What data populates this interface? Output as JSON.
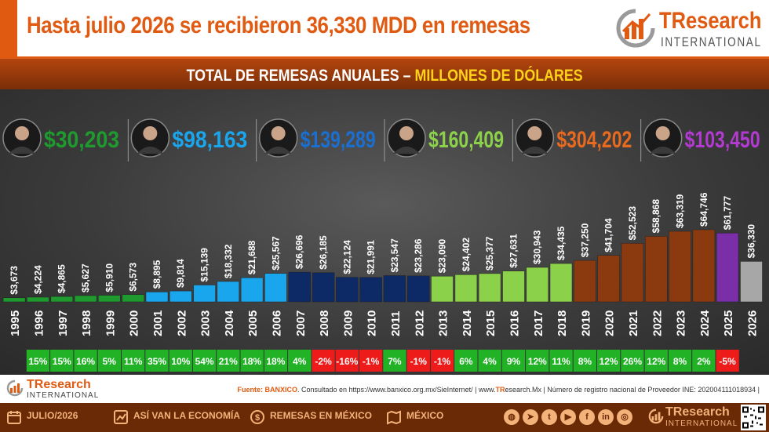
{
  "header": {
    "title": "Hasta julio 2026 se recibieron 36,330 MDD en remesas",
    "brand_tr": "TR",
    "brand_rest": "esearch",
    "brand_sub": "INTERNATIONAL"
  },
  "subtitle": {
    "main": "TOTAL DE REMESAS ANUALES – ",
    "highlight": "MILLONES DE DÓLARES"
  },
  "colors": {
    "orange": "#e05a12",
    "green_dark": "#1f9a2e",
    "blue_light": "#1aa6ec",
    "navy": "#0d2a66",
    "green_light": "#8cd14a",
    "brown": "#8b3a0f",
    "purple": "#7a2ea8",
    "gray": "#a7a7a7",
    "pct_positive": "#22b226",
    "pct_negative": "#ee1b1b"
  },
  "presidents": [
    {
      "total": "$30,203",
      "color": "#1f9a2e",
      "portrait": "portrait-1-icon"
    },
    {
      "total": "$98,163",
      "color": "#1aa6ec",
      "portrait": "portrait-2-icon"
    },
    {
      "total": "$139,289",
      "color": "#1a6fd1",
      "portrait": "portrait-3-icon"
    },
    {
      "total": "$160,409",
      "color": "#8cd14a",
      "portrait": "portrait-4-icon"
    },
    {
      "total": "$304,202",
      "color": "#e86a1f",
      "portrait": "portrait-5-icon"
    },
    {
      "total": "$103,450",
      "color": "#b23ad1",
      "portrait": "portrait-6-icon"
    }
  ],
  "chart_data": {
    "type": "bar",
    "title": "TOTAL DE REMESAS ANUALES – MILLONES DE DÓLARES",
    "categories": [
      "1995",
      "1996",
      "1997",
      "1998",
      "1999",
      "2000",
      "2001",
      "2002",
      "2003",
      "2004",
      "2005",
      "2006",
      "2007",
      "2008",
      "2009",
      "2010",
      "2011",
      "2012",
      "2013",
      "2014",
      "2015",
      "2016",
      "2017",
      "2018",
      "2019",
      "2020",
      "2021",
      "2022",
      "2023",
      "2024",
      "2025",
      "2026"
    ],
    "values": [
      3673,
      4224,
      4865,
      5627,
      5910,
      6573,
      8895,
      9814,
      15139,
      18332,
      21688,
      25567,
      26696,
      26185,
      22124,
      21991,
      23547,
      23286,
      23090,
      24402,
      25377,
      27631,
      30943,
      34435,
      37250,
      41704,
      52523,
      58868,
      63319,
      64746,
      61777,
      36330
    ],
    "value_labels": [
      "$3,673",
      "$4,224",
      "$4,865",
      "$5,627",
      "$5,910",
      "$6,573",
      "$8,895",
      "$9,814",
      "$15,139",
      "$18,332",
      "$21,688",
      "$25,567",
      "$26,696",
      "$26,185",
      "$22,124",
      "$21,991",
      "$23,547",
      "$23,286",
      "$23,090",
      "$24,402",
      "$25,377",
      "$27,631",
      "$30,943",
      "$34,435",
      "$37,250",
      "$41,704",
      "$52,523",
      "$58,868",
      "$63,319",
      "$64,746",
      "$61,777",
      "$36,330"
    ],
    "bar_colors": [
      "#1f9a2e",
      "#1f9a2e",
      "#1f9a2e",
      "#1f9a2e",
      "#1f9a2e",
      "#1f9a2e",
      "#1aa6ec",
      "#1aa6ec",
      "#1aa6ec",
      "#1aa6ec",
      "#1aa6ec",
      "#1aa6ec",
      "#0d2a66",
      "#0d2a66",
      "#0d2a66",
      "#0d2a66",
      "#0d2a66",
      "#0d2a66",
      "#8cd14a",
      "#8cd14a",
      "#8cd14a",
      "#8cd14a",
      "#8cd14a",
      "#8cd14a",
      "#8b3a0f",
      "#8b3a0f",
      "#8b3a0f",
      "#8b3a0f",
      "#8b3a0f",
      "#8b3a0f",
      "#7a2ea8",
      "#a7a7a7"
    ],
    "pct_change": [
      "",
      "15%",
      "15%",
      "16%",
      "5%",
      "11%",
      "35%",
      "10%",
      "54%",
      "21%",
      "18%",
      "18%",
      "4%",
      "-2%",
      "-16%",
      "-1%",
      "7%",
      "-1%",
      "-1%",
      "6%",
      "4%",
      "9%",
      "12%",
      "11%",
      "8%",
      "12%",
      "26%",
      "12%",
      "8%",
      "2%",
      "-5%",
      ""
    ],
    "ylim": [
      0,
      70000
    ]
  },
  "footer": {
    "logo_name": "TResearch",
    "logo_sub": "INTERNATIONAL",
    "source_label": "Fuente: BANXICO",
    "source_text": ". Consultado en https://www.banxico.org.mx/SieInternet/  |  www.",
    "source_brand": "TR",
    "source_text2": "esearch.Mx | Número de registro nacional de Proveedor INE: 202004111018934  |"
  },
  "bottom_bar": {
    "items": [
      {
        "label": "JULIO/2026",
        "icon": "calendar-icon"
      },
      {
        "label": "ASÍ VAN LA ECONOMÍA",
        "icon": "economy-icon"
      },
      {
        "label": "REMESAS EN MÉXICO",
        "icon": "remittance-icon"
      },
      {
        "label": "MÉXICO",
        "icon": "map-icon"
      }
    ],
    "social": [
      "globe-icon",
      "telegram-icon",
      "twitter-icon",
      "youtube-icon",
      "facebook-icon",
      "linkedin-icon",
      "instagram-icon"
    ],
    "logo_name": "TResearch",
    "logo_sub": "INTERNATIONAL"
  }
}
